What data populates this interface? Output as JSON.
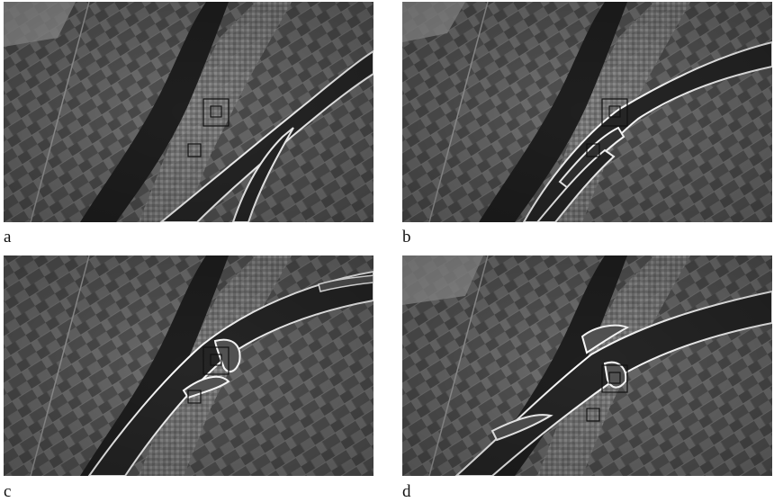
{
  "panels": [
    {
      "label": "a"
    },
    {
      "label": "b"
    },
    {
      "label": "c"
    },
    {
      "label": "d"
    }
  ],
  "colors": {
    "terrain_dark": "#4a4a4a",
    "terrain_light": "#8a8a8a",
    "nile_river": "#1f1f1f",
    "overlay_channel_fill": "#262626",
    "overlay_channel_outline": "#ffffff",
    "label_text": "#111111"
  }
}
